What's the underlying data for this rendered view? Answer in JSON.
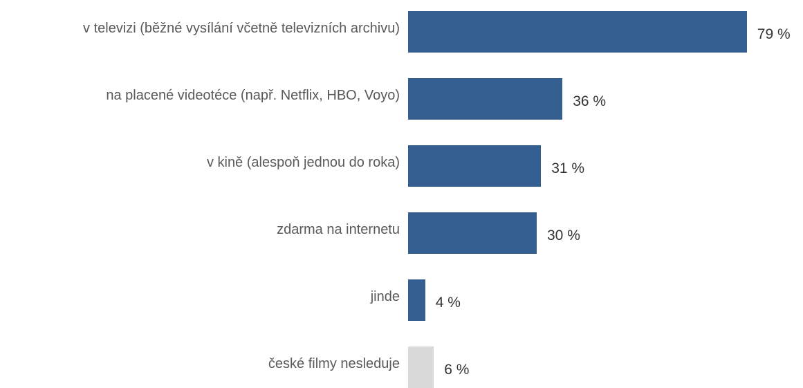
{
  "chart_data": {
    "type": "bar",
    "orientation": "horizontal",
    "categories": [
      "v televizi (běžné vysílání včetně televizních archivu)",
      "na placené videotéce (např. Netflix, HBO, Voyo)",
      "v kině (alespoň jednou do roka)",
      "zdarma na internetu",
      "jinde",
      "české filmy nesleduje"
    ],
    "values": [
      79,
      36,
      31,
      30,
      4,
      6
    ],
    "value_labels": [
      "79 %",
      "36 %",
      "31 %",
      "30 %",
      "4 %",
      "6 %"
    ],
    "colors": [
      "#365f91",
      "#365f91",
      "#365f91",
      "#365f91",
      "#365f91",
      "#d9d9d9"
    ]
  }
}
